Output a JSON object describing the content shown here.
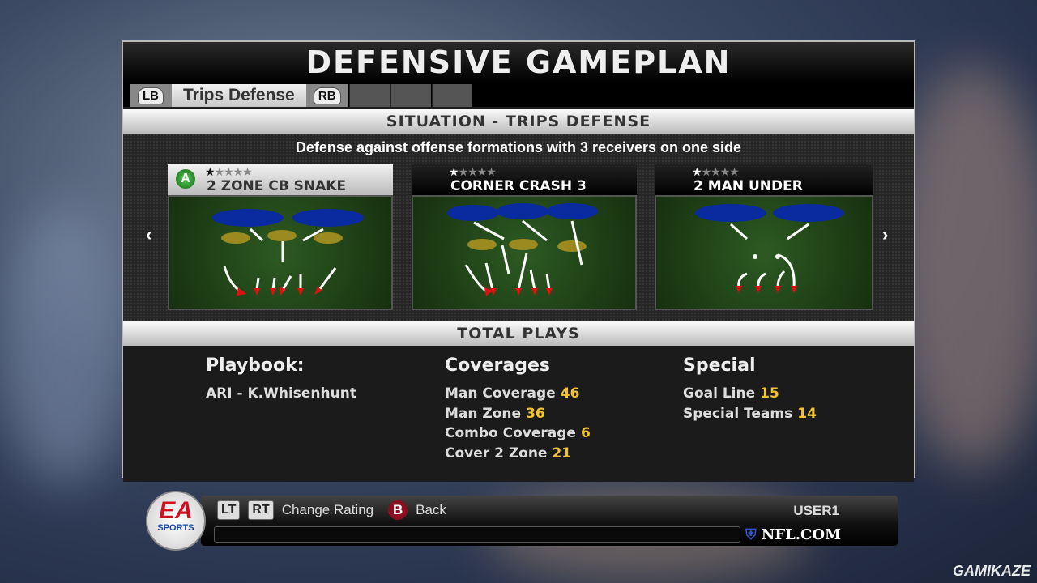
{
  "title": "DEFENSIVE GAMEPLAN",
  "tabs": {
    "left_button": "LB",
    "active": "Trips Defense",
    "right_button": "RB"
  },
  "situation": {
    "header": "SITUATION - TRIPS DEFENSE",
    "description": "Defense against offense formations with 3 receivers on one side"
  },
  "plays": [
    {
      "name": "2 ZONE CB SNAKE",
      "rating": 1,
      "max_rating": 5,
      "selected": true,
      "button": "A"
    },
    {
      "name": "CORNER CRASH 3",
      "rating": 1,
      "max_rating": 5,
      "selected": false
    },
    {
      "name": "2 MAN UNDER",
      "rating": 1,
      "max_rating": 5,
      "selected": false
    }
  ],
  "total_plays": {
    "header": "TOTAL PLAYS",
    "playbook": {
      "title": "Playbook:",
      "value": "ARI - K.Whisenhunt"
    },
    "coverages": {
      "title": "Coverages",
      "items": [
        {
          "label": "Man Coverage",
          "count": "46"
        },
        {
          "label": "Man Zone",
          "count": "36"
        },
        {
          "label": "Combo Coverage",
          "count": "6"
        },
        {
          "label": "Cover 2 Zone",
          "count": "21"
        }
      ]
    },
    "special": {
      "title": "Special",
      "items": [
        {
          "label": "Goal Line",
          "count": "15"
        },
        {
          "label": "Special Teams",
          "count": "14"
        }
      ]
    }
  },
  "footer": {
    "lt": "LT",
    "rt": "RT",
    "change_rating": "Change Rating",
    "b": "B",
    "back": "Back",
    "user": "USER1",
    "nfl": "NFL.COM",
    "ea_logo": "EA SPORTS"
  },
  "watermark": "GAMIKAZE",
  "colors": {
    "accent_number": "#f2c230",
    "zone_blue": "#0a2aa0",
    "zone_yellow": "#9a8a20",
    "route_red": "#e01010"
  }
}
